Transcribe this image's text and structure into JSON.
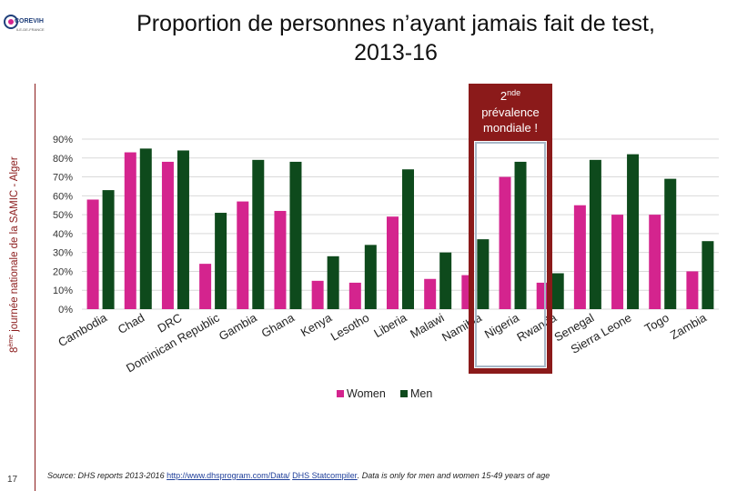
{
  "slide": {
    "title_line1": "Proportion de personnes n’ayant jamais fait de test,",
    "title_line2": "2013-16",
    "vertical_label_prefix": "8",
    "vertical_label_sup": "ème",
    "vertical_label_rest": " journée nationale de la SAMIC - Alger",
    "slide_number": "17",
    "logo_text": "COREVIH",
    "logo_subtext": "ILE-DE-FRANCE"
  },
  "source": {
    "prefix": "Source: DHS reports 2013-2016 ",
    "link": "http://www.dhsprogram.com/Data/",
    "space": " ",
    "statcompiler": "DHS Statcompiler",
    "suffix": ". Data is only for men and women 15-49 years of age"
  },
  "callout": {
    "line1_base": "2",
    "line1_sup": "nde",
    "line2": "prévalence",
    "line3": "mondiale !",
    "highlight_color": "#8b1a1a"
  },
  "chart_data": {
    "type": "bar",
    "title": "Proportion de personnes n’ayant jamais fait de test, 2013-16",
    "categories": [
      "Cambodia",
      "Chad",
      "DRC",
      "Dominican Republic",
      "Gambia",
      "Ghana",
      "Kenya",
      "Lesotho",
      "Liberia",
      "Malawi",
      "Namibia",
      "Nigeria",
      "Rwanda",
      "Senegal",
      "Sierra Leone",
      "Togo",
      "Zambia"
    ],
    "series": [
      {
        "name": "Women",
        "color": "#d4248e",
        "values": [
          58,
          83,
          78,
          24,
          57,
          52,
          15,
          14,
          49,
          16,
          18,
          70,
          14,
          55,
          50,
          50,
          20
        ]
      },
      {
        "name": "Men",
        "color": "#0e4a1c",
        "values": [
          63,
          85,
          84,
          51,
          79,
          78,
          28,
          34,
          74,
          30,
          37,
          78,
          19,
          79,
          82,
          69,
          36
        ]
      }
    ],
    "y_ticks": [
      "0%",
      "10%",
      "20%",
      "30%",
      "40%",
      "50%",
      "60%",
      "70%",
      "80%",
      "90%"
    ],
    "ylim": [
      0,
      90
    ],
    "legend_position": "bottom",
    "highlight_category": "Nigeria"
  }
}
